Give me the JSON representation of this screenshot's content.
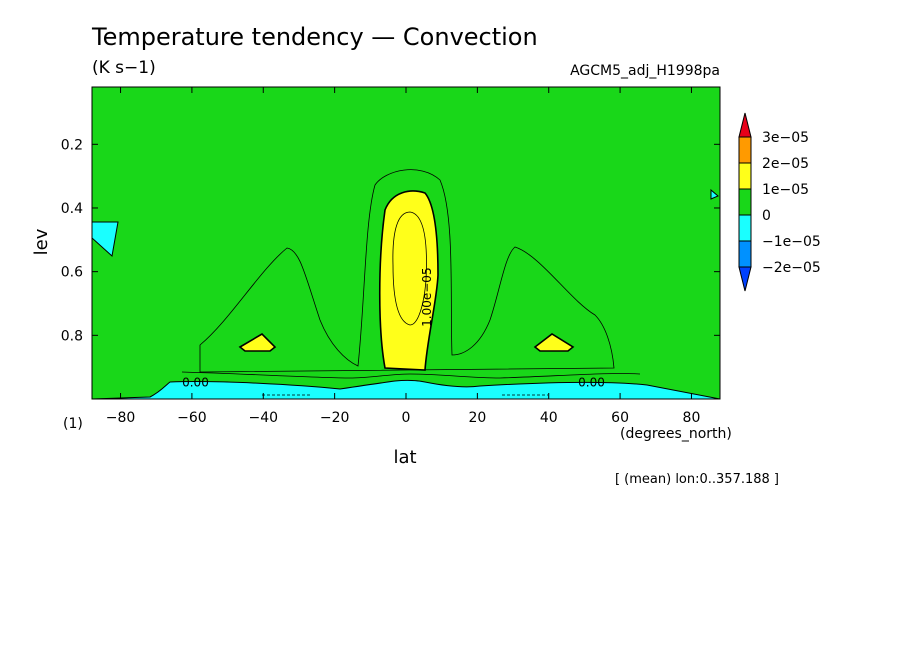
{
  "chart_data": {
    "type": "contour",
    "title": "Temperature tendency — Convection",
    "units": "(K s−1)",
    "dataset": "AGCM5_adj_H1998pa",
    "xlabel": "lat",
    "xunits": "(degrees_north)",
    "ylabel": "lev",
    "yunits": "(1)",
    "xlim": [
      -88,
      88
    ],
    "ylim": [
      1.0,
      0.02
    ],
    "x_ticks": [
      -80,
      -60,
      -40,
      -20,
      0,
      20,
      40,
      60,
      80
    ],
    "x_tick_labels": [
      "−80",
      "−60",
      "−40",
      "−20",
      "0",
      "20",
      "40",
      "60",
      "80"
    ],
    "y_ticks": [
      0.2,
      0.4,
      0.6,
      0.8
    ],
    "y_tick_labels": [
      "0.2",
      "0.4",
      "0.6",
      "0.8"
    ],
    "note": "[ (mean) lon:0..357.188 ]",
    "colorbar": {
      "levels": [
        {
          "label": "3e−05",
          "value": 3e-05
        },
        {
          "label": "2e−05",
          "value": 2e-05
        },
        {
          "label": "1e−05",
          "value": 1e-05
        },
        {
          "label": "0",
          "value": 0
        },
        {
          "label": "−1e−05",
          "value": -1e-05
        },
        {
          "label": "−2e−05",
          "value": -2e-05
        }
      ],
      "colors": {
        "above_3e-05": "#e8001a",
        "2e-05_to_3e-05": "#ff9a00",
        "1e-05_to_2e-05": "#ffff1a",
        "0_to_1e-05": "#19d719",
        "-1e-05_to_0": "#1affff",
        "-2e-05_to_-1e-05": "#0091ff",
        "below_-2e-05": "#0041ff"
      }
    },
    "contour_labels": [
      {
        "text": "0.00",
        "lat": -59,
        "lev": 0.96
      },
      {
        "text": "0.00",
        "lat": 52,
        "lev": 0.96
      },
      {
        "text": "1.00e−05",
        "lat": 7,
        "lev": 0.68
      }
    ]
  }
}
